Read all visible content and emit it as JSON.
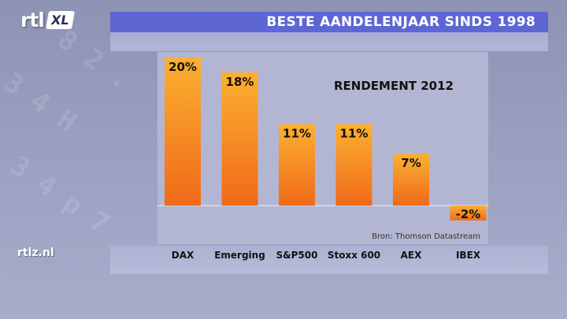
{
  "header": {
    "logo_text": "rtl",
    "logo_badge": "XL",
    "banner_title": "BESTE AANDELENJAAR SINDS 1998"
  },
  "footer": {
    "site": "rtlz.nl"
  },
  "colors": {
    "banner": "#5d66d3",
    "bar_top": "#fbb030",
    "bar_bottom": "#f06a1a",
    "plot_background": "#b3b6d2"
  },
  "chart_data": {
    "type": "bar",
    "title": "RENDEMENT 2012",
    "categories": [
      "DAX",
      "Emerging",
      "S&P500",
      "Stoxx 600",
      "AEX",
      "IBEX"
    ],
    "values": [
      20,
      18,
      11,
      11,
      7,
      -2
    ],
    "value_labels": [
      "20%",
      "18%",
      "11%",
      "11%",
      "7%",
      "-2%"
    ],
    "unit": "%",
    "source": "Bron: Thomson Datastream",
    "ylim": [
      -3,
      21
    ],
    "grid": false,
    "legend": "none"
  }
}
